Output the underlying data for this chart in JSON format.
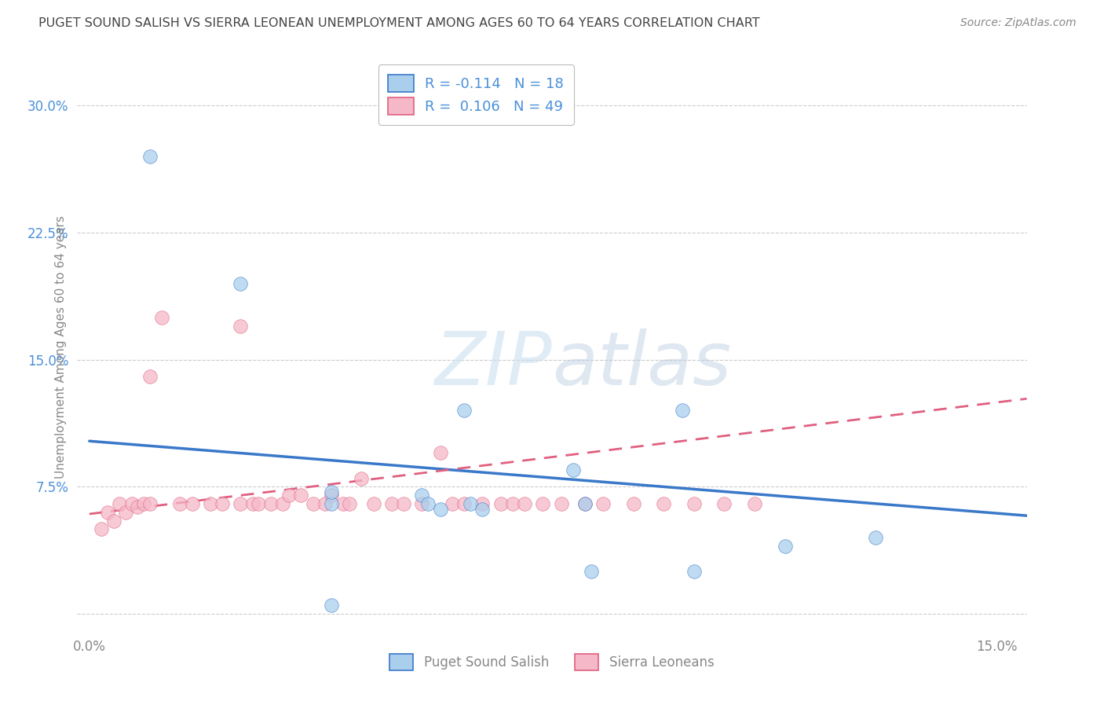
{
  "title": "PUGET SOUND SALISH VS SIERRA LEONEAN UNEMPLOYMENT AMONG AGES 60 TO 64 YEARS CORRELATION CHART",
  "source": "Source: ZipAtlas.com",
  "ylabel": "Unemployment Among Ages 60 to 64 years",
  "xlim": [
    -0.002,
    0.155
  ],
  "ylim": [
    -0.01,
    0.325
  ],
  "xticks": [
    0.0,
    0.05,
    0.1,
    0.15
  ],
  "xticklabels": [
    "0.0%",
    "",
    "",
    "15.0%"
  ],
  "yticks": [
    0.0,
    0.075,
    0.15,
    0.225,
    0.3
  ],
  "yticklabels": [
    "",
    "7.5%",
    "15.0%",
    "22.5%",
    "30.0%"
  ],
  "background_color": "#ffffff",
  "grid_color": "#cccccc",
  "blue_color": "#aacfed",
  "pink_color": "#f5b8c8",
  "line_blue": "#3a78c9",
  "line_pink": "#e06080",
  "title_color": "#444444",
  "axis_label_color": "#888888",
  "tick_label_color_right": "#4a90d9",
  "tick_label_color_bottom": "#888888",
  "puget_points_x": [
    0.01,
    0.025,
    0.04,
    0.04,
    0.04,
    0.055,
    0.056,
    0.058,
    0.062,
    0.063,
    0.065,
    0.08,
    0.082,
    0.083,
    0.098,
    0.1,
    0.115,
    0.13
  ],
  "puget_points_y": [
    0.27,
    0.195,
    0.005,
    0.065,
    0.072,
    0.07,
    0.065,
    0.062,
    0.12,
    0.065,
    0.062,
    0.085,
    0.065,
    0.025,
    0.12,
    0.025,
    0.04,
    0.045
  ],
  "sierra_points_x": [
    0.002,
    0.003,
    0.004,
    0.005,
    0.006,
    0.007,
    0.008,
    0.009,
    0.01,
    0.01,
    0.012,
    0.015,
    0.017,
    0.02,
    0.022,
    0.025,
    0.025,
    0.027,
    0.028,
    0.03,
    0.032,
    0.033,
    0.035,
    0.037,
    0.039,
    0.04,
    0.042,
    0.043,
    0.045,
    0.047,
    0.05,
    0.052,
    0.055,
    0.058,
    0.06,
    0.062,
    0.065,
    0.068,
    0.07,
    0.072,
    0.075,
    0.078,
    0.082,
    0.085,
    0.09,
    0.095,
    0.1,
    0.105,
    0.11
  ],
  "sierra_points_y": [
    0.05,
    0.06,
    0.055,
    0.065,
    0.06,
    0.065,
    0.063,
    0.065,
    0.065,
    0.14,
    0.175,
    0.065,
    0.065,
    0.065,
    0.065,
    0.17,
    0.065,
    0.065,
    0.065,
    0.065,
    0.065,
    0.07,
    0.07,
    0.065,
    0.065,
    0.07,
    0.065,
    0.065,
    0.08,
    0.065,
    0.065,
    0.065,
    0.065,
    0.095,
    0.065,
    0.065,
    0.065,
    0.065,
    0.065,
    0.065,
    0.065,
    0.065,
    0.065,
    0.065,
    0.065,
    0.065,
    0.065,
    0.065,
    0.065
  ],
  "puget_trendline_x": [
    0.0,
    0.155
  ],
  "puget_trendline_y": [
    0.102,
    0.058
  ],
  "sierra_trendline_x": [
    0.0,
    0.155
  ],
  "sierra_trendline_y": [
    0.059,
    0.127
  ],
  "watermark_zip": "ZIP",
  "watermark_atlas": "atlas",
  "legend_items": [
    {
      "label": "R = -0.114   N = 18",
      "color": "#aacfed",
      "edge": "#3a78c9"
    },
    {
      "label": "R =  0.106   N = 49",
      "color": "#f5b8c8",
      "edge": "#e06080"
    }
  ],
  "bottom_legend": [
    {
      "label": "Puget Sound Salish",
      "color": "#aacfed",
      "edge": "#3a78c9"
    },
    {
      "label": "Sierra Leoneans",
      "color": "#f5b8c8",
      "edge": "#e06080"
    }
  ]
}
